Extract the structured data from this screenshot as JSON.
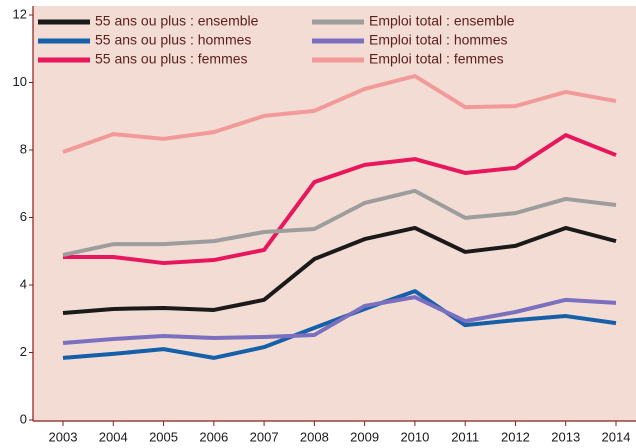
{
  "chart_data": {
    "type": "line",
    "categories": [
      "2003",
      "2004",
      "2005",
      "2006",
      "2007",
      "2008",
      "2009",
      "2010",
      "2011",
      "2012",
      "2013",
      "2014"
    ],
    "series": [
      {
        "name": "55 ans ou plus : ensemble",
        "color": "#1a1a1a",
        "values": [
          3.17,
          3.29,
          3.32,
          3.26,
          3.56,
          4.77,
          5.36,
          5.69,
          4.98,
          5.16,
          5.69,
          5.3
        ]
      },
      {
        "name": "55 ans ou plus : hommes",
        "color": "#1560a8",
        "values": [
          1.84,
          1.96,
          2.1,
          1.84,
          2.16,
          2.73,
          3.29,
          3.82,
          2.81,
          2.96,
          3.08,
          2.87
        ]
      },
      {
        "name": "55 ans ou plus : femmes",
        "color": "#e8175d",
        "values": [
          4.83,
          4.83,
          4.65,
          4.74,
          5.04,
          7.05,
          7.56,
          7.73,
          7.32,
          7.47,
          8.44,
          7.85
        ]
      },
      {
        "name": "Emploi total : ensemble",
        "color": "#9d9d9d",
        "values": [
          4.89,
          5.21,
          5.21,
          5.3,
          5.57,
          5.66,
          6.43,
          6.79,
          5.99,
          6.13,
          6.55,
          6.37
        ]
      },
      {
        "name": "Emploi total : hommes",
        "color": "#7b6fbf",
        "values": [
          2.28,
          2.4,
          2.49,
          2.43,
          2.46,
          2.52,
          3.38,
          3.64,
          2.93,
          3.2,
          3.56,
          3.47
        ]
      },
      {
        "name": "Emploi total : femmes",
        "color": "#f29a9a",
        "values": [
          7.94,
          8.47,
          8.33,
          8.53,
          9.01,
          9.16,
          9.81,
          10.19,
          9.27,
          9.3,
          9.72,
          9.45
        ]
      }
    ],
    "ylim": [
      0,
      12
    ],
    "yticks": [
      0,
      2,
      4,
      6,
      8,
      10,
      12
    ],
    "legend": "upper left",
    "background": "#f2dcd3"
  }
}
